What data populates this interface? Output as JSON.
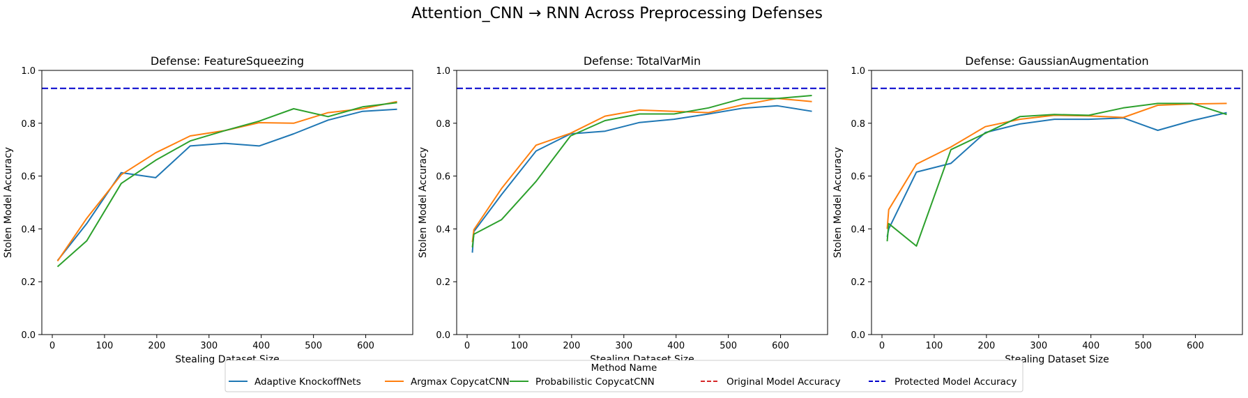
{
  "figure": {
    "suptitle": "Attention_CNN → RNN Across Preprocessing Defenses"
  },
  "legend": {
    "title": "Method Name",
    "placement": "bottom-center",
    "entries": [
      {
        "label": "Adaptive KnockoffNets",
        "color": "#1f77b4",
        "style": "solid"
      },
      {
        "label": "Argmax CopycatCNN",
        "color": "#ff7f0e",
        "style": "solid"
      },
      {
        "label": "Probabilistic CopycatCNN",
        "color": "#2ca02c",
        "style": "solid"
      },
      {
        "label": "Original Model Accuracy",
        "color": "#d62728",
        "style": "dashed"
      },
      {
        "label": "Protected Model Accuracy",
        "color": "#0000cc",
        "style": "dashed"
      }
    ]
  },
  "chart_data": [
    {
      "type": "line",
      "title": "Defense: FeatureSqueezing",
      "xlabel": "Stealing Dataset Size",
      "ylabel": "Stolen Model Accuracy",
      "xlim": [
        -20,
        690
      ],
      "ylim": [
        0,
        1.0
      ],
      "xticks": [
        "0",
        "100",
        "200",
        "300",
        "400",
        "500",
        "600"
      ],
      "yticks": [
        "0.0",
        "0.2",
        "0.4",
        "0.6",
        "0.8",
        "1.0"
      ],
      "grid": false,
      "hlines": [
        {
          "name": "Protected Model Accuracy",
          "y": 0.932,
          "color": "#0000cc"
        }
      ],
      "series": [
        {
          "name": "Adaptive KnockoffNets",
          "color": "#1f77b4",
          "x": [
            10,
            66,
            132,
            198,
            264,
            330,
            396,
            462,
            528,
            594,
            660
          ],
          "y": [
            0.28,
            0.42,
            0.613,
            0.594,
            0.714,
            0.724,
            0.714,
            0.76,
            0.812,
            0.845,
            0.853
          ]
        },
        {
          "name": "Argmax CopycatCNN",
          "color": "#ff7f0e",
          "x": [
            10,
            66,
            132,
            198,
            264,
            330,
            396,
            462,
            528,
            594,
            660
          ],
          "y": [
            0.278,
            0.44,
            0.605,
            0.688,
            0.752,
            0.772,
            0.802,
            0.8,
            0.84,
            0.855,
            0.882
          ]
        },
        {
          "name": "Probabilistic CopycatCNN",
          "color": "#2ca02c",
          "x": [
            10,
            66,
            132,
            198,
            264,
            330,
            396,
            462,
            528,
            594,
            660
          ],
          "y": [
            0.257,
            0.355,
            0.572,
            0.66,
            0.733,
            0.772,
            0.808,
            0.855,
            0.825,
            0.862,
            0.878
          ]
        }
      ]
    },
    {
      "type": "line",
      "title": "Defense: TotalVarMin",
      "xlabel": "Stealing Dataset Size",
      "ylabel": "Stolen Model Accuracy",
      "xlim": [
        -20,
        690
      ],
      "ylim": [
        0,
        1.0
      ],
      "xticks": [
        "0",
        "100",
        "200",
        "300",
        "400",
        "500",
        "600"
      ],
      "yticks": [
        "0.0",
        "0.2",
        "0.4",
        "0.6",
        "0.8",
        "1.0"
      ],
      "grid": false,
      "hlines": [
        {
          "name": "Protected Model Accuracy",
          "y": 0.932,
          "color": "#0000cc"
        }
      ],
      "series": [
        {
          "name": "Adaptive KnockoffNets",
          "color": "#1f77b4",
          "x": [
            10,
            13,
            66,
            132,
            198,
            264,
            330,
            396,
            462,
            528,
            594,
            660
          ],
          "y": [
            0.31,
            0.39,
            0.53,
            0.695,
            0.76,
            0.77,
            0.803,
            0.815,
            0.835,
            0.857,
            0.866,
            0.845
          ]
        },
        {
          "name": "Argmax CopycatCNN",
          "color": "#ff7f0e",
          "x": [
            10,
            13,
            66,
            132,
            198,
            264,
            330,
            396,
            462,
            528,
            594,
            660
          ],
          "y": [
            0.35,
            0.397,
            0.553,
            0.717,
            0.762,
            0.827,
            0.85,
            0.845,
            0.84,
            0.87,
            0.894,
            0.882
          ]
        },
        {
          "name": "Probabilistic CopycatCNN",
          "color": "#2ca02c",
          "x": [
            10,
            13,
            66,
            132,
            198,
            264,
            330,
            396,
            462,
            528,
            594,
            660
          ],
          "y": [
            0.33,
            0.38,
            0.435,
            0.58,
            0.752,
            0.81,
            0.835,
            0.835,
            0.858,
            0.894,
            0.894,
            0.905
          ]
        }
      ]
    },
    {
      "type": "line",
      "title": "Defense: GaussianAugmentation",
      "xlabel": "Stealing Dataset Size",
      "ylabel": "Stolen Model Accuracy",
      "xlim": [
        -20,
        690
      ],
      "ylim": [
        0,
        1.0
      ],
      "xticks": [
        "0",
        "100",
        "200",
        "300",
        "400",
        "500",
        "600"
      ],
      "yticks": [
        "0.0",
        "0.2",
        "0.4",
        "0.6",
        "0.8",
        "1.0"
      ],
      "grid": false,
      "hlines": [
        {
          "name": "Protected Model Accuracy",
          "y": 0.932,
          "color": "#0000cc"
        }
      ],
      "series": [
        {
          "name": "Adaptive KnockoffNets",
          "color": "#1f77b4",
          "x": [
            10,
            13,
            66,
            132,
            198,
            264,
            330,
            396,
            462,
            528,
            594,
            660
          ],
          "y": [
            0.37,
            0.4,
            0.615,
            0.648,
            0.765,
            0.797,
            0.815,
            0.815,
            0.82,
            0.773,
            0.81,
            0.84
          ]
        },
        {
          "name": "Argmax CopycatCNN",
          "color": "#ff7f0e",
          "x": [
            10,
            13,
            66,
            132,
            198,
            264,
            330,
            396,
            462,
            528,
            594,
            660
          ],
          "y": [
            0.4,
            0.473,
            0.645,
            0.71,
            0.787,
            0.815,
            0.83,
            0.828,
            0.822,
            0.868,
            0.873,
            0.875
          ]
        },
        {
          "name": "Probabilistic CopycatCNN",
          "color": "#2ca02c",
          "x": [
            10,
            13,
            66,
            132,
            198,
            264,
            330,
            396,
            462,
            528,
            594,
            660
          ],
          "y": [
            0.353,
            0.42,
            0.335,
            0.7,
            0.762,
            0.825,
            0.833,
            0.83,
            0.858,
            0.875,
            0.875,
            0.833
          ]
        }
      ]
    }
  ]
}
